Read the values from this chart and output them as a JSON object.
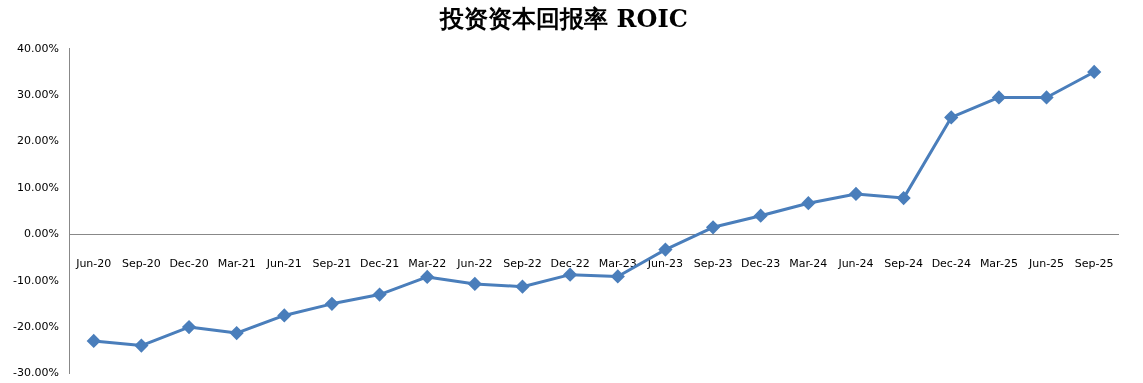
{
  "chart_data": {
    "type": "line",
    "title": "投资资本回报率 ROIC",
    "categories": [
      "Jun-20",
      "Sep-20",
      "Dec-20",
      "Mar-21",
      "Jun-21",
      "Sep-21",
      "Dec-21",
      "Mar-22",
      "Jun-22",
      "Sep-22",
      "Dec-22",
      "Mar-23",
      "Jun-23",
      "Sep-23",
      "Dec-23",
      "Mar-24",
      "Jun-24",
      "Sep-24",
      "Dec-24",
      "Mar-25",
      "Jun-25",
      "Sep-25"
    ],
    "series": [
      {
        "color": "#4a7ebb",
        "values": [
          -23,
          -24,
          -20,
          -21.3,
          -17.5,
          -15,
          -13,
          -9.2,
          -10.7,
          -11.3,
          -8.7,
          -9.1,
          -3.3,
          1.5,
          4,
          6.7,
          8.7,
          7.8,
          25.2,
          29.5,
          29.5,
          35
        ]
      }
    ],
    "ylim": [
      -30,
      40
    ],
    "yticks": [
      {
        "value": -30,
        "label": "-30.00%"
      },
      {
        "value": -20,
        "label": "-20.00%"
      },
      {
        "value": -10,
        "label": "-10.00%"
      },
      {
        "value": 0,
        "label": "0.00%"
      },
      {
        "value": 10,
        "label": "10.00%"
      },
      {
        "value": 20,
        "label": "20.00%"
      },
      {
        "value": 30,
        "label": "30.00%"
      },
      {
        "value": 40,
        "label": "40.00%"
      }
    ],
    "grid": false,
    "legend": false,
    "marker": "diamond",
    "line_style": "solid"
  }
}
